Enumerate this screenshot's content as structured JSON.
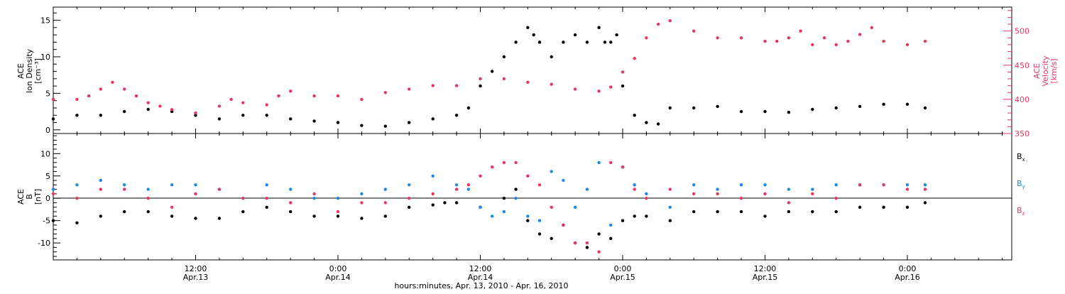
{
  "x_axis": {
    "title": "hours:minutes, Apr. 13, 2010 - Apr. 16, 2010",
    "major_ticks": [
      {
        "hour": 12,
        "time": "12:00",
        "date": "Apr.13"
      },
      {
        "hour": 24,
        "time": "0:00",
        "date": "Apr.14"
      },
      {
        "hour": 36,
        "time": "12:00",
        "date": "Apr.14"
      },
      {
        "hour": 48,
        "time": "0:00",
        "date": "Apr.15"
      },
      {
        "hour": 60,
        "time": "12:00",
        "date": "Apr.15"
      },
      {
        "hour": 72,
        "time": "0:00",
        "date": "Apr.16"
      }
    ]
  },
  "chart_data": [
    {
      "type": "scatter",
      "panel": "top",
      "ylabel_left": [
        "ACE",
        "Ion Density",
        "[cm⁻³]"
      ],
      "ylabel_right": [
        "ACE",
        "Velocity",
        "[km/s]"
      ],
      "ylim_left": [
        -0.5,
        16.8
      ],
      "yticks_left": [
        0,
        5,
        10,
        15
      ],
      "ylim_right": [
        350,
        535
      ],
      "yticks_right": [
        350,
        400,
        450,
        500
      ],
      "xlim_hours": [
        0,
        80.8
      ],
      "series": [
        {
          "axis": "left",
          "color": "#000000",
          "x": [
            0,
            2,
            4,
            6,
            8,
            10,
            12,
            14,
            16,
            18,
            20,
            22,
            24,
            26,
            28,
            30,
            32,
            34,
            35,
            36,
            37,
            38,
            39,
            40,
            40.5,
            41,
            42,
            43,
            44,
            45,
            46,
            46.5,
            47,
            47.5,
            48,
            49,
            50,
            51,
            52,
            54,
            56,
            58,
            60,
            62,
            64,
            66,
            68,
            70,
            72,
            73.5
          ],
          "y": [
            1.5,
            2,
            2,
            2.5,
            2.8,
            2.5,
            2,
            1.5,
            2,
            2,
            1.5,
            1.2,
            1,
            0.6,
            0.5,
            1,
            1.5,
            2,
            3,
            6,
            8,
            10,
            12,
            14,
            13,
            12,
            10,
            12,
            13,
            12,
            14,
            12,
            12,
            13,
            6,
            2,
            1,
            0.8,
            3,
            3,
            3.2,
            2.5,
            2.5,
            2.4,
            2.8,
            3,
            3.2,
            3.5,
            3.5,
            3
          ]
        },
        {
          "axis": "right",
          "color": "#e8365f",
          "x": [
            0,
            2,
            3,
            4,
            5,
            6,
            7,
            8,
            9,
            10,
            12,
            14,
            15,
            16,
            18,
            19,
            20,
            22,
            24,
            26,
            28,
            30,
            32,
            34,
            36,
            38,
            40,
            42,
            44,
            46,
            47,
            48,
            49,
            50,
            51,
            52,
            54,
            56,
            58,
            60,
            61,
            62,
            63,
            64,
            65,
            66,
            67,
            68,
            69,
            70,
            72,
            73.5
          ],
          "y": [
            400,
            400,
            405,
            415,
            425,
            415,
            405,
            395,
            390,
            385,
            380,
            390,
            400,
            395,
            392,
            405,
            412,
            405,
            405,
            400,
            410,
            415,
            420,
            420,
            430,
            430,
            425,
            422,
            415,
            412,
            418,
            440,
            460,
            490,
            510,
            515,
            500,
            490,
            490,
            485,
            485,
            490,
            500,
            480,
            490,
            480,
            485,
            495,
            505,
            485,
            480,
            485
          ]
        }
      ]
    },
    {
      "type": "scatter",
      "panel": "bottom",
      "ylabel_left": [
        "ACE",
        "B",
        "[nT]"
      ],
      "ylim": [
        -13.8,
        14.5
      ],
      "yticks": [
        -10,
        -5,
        0,
        5,
        10
      ],
      "xlim_hours": [
        0,
        80.8
      ],
      "series": [
        {
          "name": "B",
          "sub": "x",
          "color": "#000000",
          "x": [
            0,
            2,
            4,
            6,
            8,
            10,
            12,
            14,
            16,
            18,
            20,
            22,
            24,
            26,
            28,
            30,
            32,
            33,
            34,
            36,
            38,
            39,
            40,
            41,
            42,
            43,
            44,
            45,
            46,
            47,
            48,
            49,
            50,
            52,
            54,
            56,
            58,
            60,
            62,
            64,
            66,
            68,
            70,
            72,
            73.5
          ],
          "y": [
            -5,
            -5.5,
            -4,
            -3,
            -3,
            -4,
            -4.5,
            -4.5,
            -3,
            -2,
            -3,
            -4,
            -4,
            -4.5,
            -4,
            -2,
            -1.5,
            -1,
            -1,
            -2,
            0,
            2,
            -5,
            -8,
            -9,
            -6,
            -10,
            -11,
            -8,
            -9,
            -5,
            -4,
            -4,
            -5,
            -3,
            -3,
            -3,
            -4,
            -3,
            -3,
            -3,
            -2,
            -2,
            -2,
            -1
          ]
        },
        {
          "name": "B",
          "sub": "y",
          "color": "#1e88e5",
          "x": [
            0,
            2,
            4,
            6,
            8,
            10,
            12,
            14,
            16,
            18,
            20,
            22,
            24,
            26,
            28,
            30,
            32,
            34,
            35,
            36,
            37,
            38,
            39,
            40,
            41,
            42,
            43,
            44,
            45,
            46,
            47,
            48,
            49,
            50,
            52,
            54,
            56,
            58,
            60,
            62,
            64,
            66,
            68,
            70,
            72,
            73.5
          ],
          "y": [
            2,
            3,
            4,
            3,
            2,
            3,
            3,
            2,
            0,
            3,
            2,
            0,
            0,
            1,
            2,
            3,
            5,
            3,
            2,
            -2,
            -4,
            -3,
            0,
            -4,
            -5,
            6,
            4,
            -2,
            2,
            8,
            -6,
            7,
            3,
            1,
            -2,
            3,
            2,
            3,
            3,
            2,
            2,
            3,
            3,
            3,
            3,
            3
          ]
        },
        {
          "name": "B",
          "sub": "z",
          "color": "#e8365f",
          "x": [
            0,
            2,
            4,
            6,
            8,
            10,
            12,
            14,
            16,
            18,
            20,
            22,
            24,
            26,
            28,
            30,
            32,
            34,
            35,
            36,
            37,
            38,
            39,
            40,
            41,
            42,
            43,
            44,
            45,
            46,
            47,
            48,
            49,
            50,
            52,
            54,
            56,
            58,
            60,
            62,
            64,
            66,
            68,
            70,
            72,
            73.5
          ],
          "y": [
            1,
            0,
            2,
            2,
            0,
            -2,
            1,
            2,
            0,
            0,
            -1,
            1,
            -3,
            -1,
            -1,
            0,
            1,
            2,
            3,
            5,
            7,
            8,
            8,
            5,
            3,
            -2,
            -6,
            -10,
            -10,
            -12,
            8,
            7,
            2,
            0,
            2,
            1,
            1,
            0,
            1,
            -1,
            1,
            0,
            3,
            3,
            2,
            2
          ]
        }
      ]
    }
  ]
}
